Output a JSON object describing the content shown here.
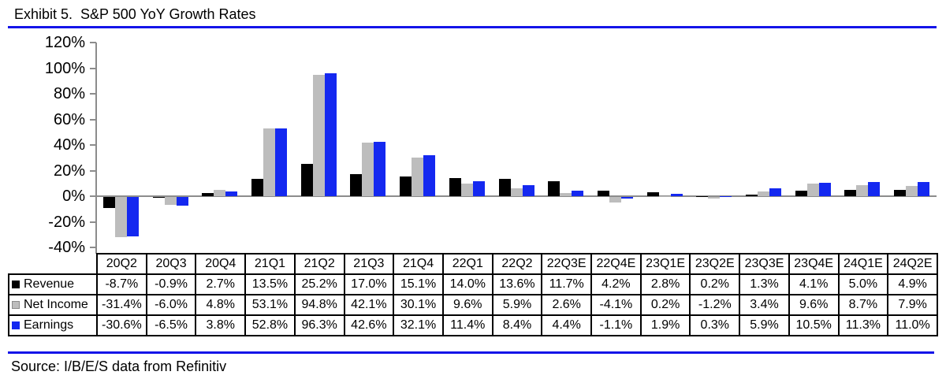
{
  "page": {
    "title": "Exhibit 5.  S&P 500 YoY Growth Rates",
    "source": "Source: I/B/E/S data from Refinitiv"
  },
  "colors": {
    "rule_blue": "#1414e8",
    "axis_gray": "#8c8c8c",
    "table_border": "#000000"
  },
  "chart_data": {
    "type": "bar",
    "title": "S&P 500 YoY Growth Rates",
    "categories": [
      "20Q2",
      "20Q3",
      "20Q4",
      "21Q1",
      "21Q2",
      "21Q3",
      "21Q4",
      "22Q1",
      "22Q2",
      "22Q3E",
      "22Q4E",
      "23Q1E",
      "23Q2E",
      "23Q3E",
      "23Q4E",
      "24Q1E",
      "24Q2E"
    ],
    "series": [
      {
        "name": "Revenue",
        "color": "#000000",
        "values": [
          -8.7,
          -0.9,
          2.7,
          13.5,
          25.2,
          17.0,
          15.1,
          14.0,
          13.6,
          11.7,
          4.2,
          2.8,
          0.2,
          1.3,
          4.1,
          5.0,
          4.9
        ]
      },
      {
        "name": "Net Income",
        "color": "#bdbdbd",
        "values": [
          -31.4,
          -6.0,
          4.8,
          53.1,
          94.8,
          42.1,
          30.1,
          9.6,
          5.9,
          2.6,
          -4.1,
          0.2,
          -1.2,
          3.4,
          9.6,
          8.7,
          7.9
        ]
      },
      {
        "name": "Earnings",
        "color": "#1428f0",
        "values": [
          -30.6,
          -6.5,
          3.8,
          52.8,
          96.3,
          42.6,
          32.1,
          11.4,
          8.4,
          4.4,
          -1.1,
          1.9,
          0.3,
          5.9,
          10.5,
          11.3,
          11.0
        ]
      }
    ],
    "ylim": [
      -40,
      120
    ],
    "ytick_step": 20,
    "ytick_suffix": "%",
    "value_suffix": "%",
    "value_decimals": 1,
    "grid": false,
    "legend_position": "table-first-column"
  }
}
